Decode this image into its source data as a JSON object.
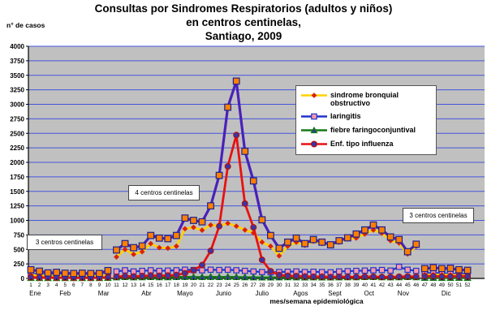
{
  "title_line1": "Consultas por Sindromes Respiratorios (adultos y niños)",
  "title_line2": "en centros centinelas,",
  "title_line3": "Santiago, 2009",
  "y_axis_unit_label": "n° de casos",
  "annotations": {
    "left": "3 centros centinelas",
    "middle": "4 centros centinelas",
    "right": "3 centros centinelas"
  },
  "chart_data": {
    "type": "line",
    "title": "Consultas por Sindromes Respiratorios (adultos y niños) en centros centinelas, Santiago, 2009",
    "xlabel": "mes/semana epidemiológica",
    "ylabel": "n° de casos",
    "ylim": [
      0,
      4000
    ],
    "y_tick_step": 250,
    "grid": "horizontal",
    "plot_bg_color": "#c0c0c0",
    "gridline_color": "#4455dd",
    "legend_position": "upper-right-inside",
    "x": [
      1,
      2,
      3,
      4,
      5,
      6,
      7,
      8,
      9,
      10,
      11,
      12,
      13,
      14,
      15,
      16,
      17,
      18,
      19,
      20,
      21,
      22,
      23,
      24,
      25,
      26,
      27,
      28,
      29,
      30,
      31,
      32,
      33,
      34,
      35,
      36,
      37,
      38,
      39,
      40,
      41,
      42,
      43,
      44,
      45,
      46,
      47,
      48,
      49,
      50,
      51,
      52
    ],
    "segments": [
      [
        1,
        10
      ],
      [
        11,
        46
      ],
      [
        47,
        52
      ]
    ],
    "months": [
      {
        "label": "Ene",
        "week": 1.5
      },
      {
        "label": "Feb",
        "week": 5
      },
      {
        "label": "Mar",
        "week": 9.5
      },
      {
        "label": "Abr",
        "week": 14.5
      },
      {
        "label": "Mayo",
        "week": 19
      },
      {
        "label": "Junio",
        "week": 23.5
      },
      {
        "label": "Julio",
        "week": 28
      },
      {
        "label": "Agos",
        "week": 32.5
      },
      {
        "label": "Sept",
        "week": 36.5
      },
      {
        "label": "Oct",
        "week": 40.5
      },
      {
        "label": "Nov",
        "week": 44.5
      },
      {
        "label": "Dic",
        "week": 49.5
      }
    ],
    "draw_order": [
      2,
      1,
      0,
      3,
      4
    ],
    "series": [
      {
        "name": "sindrome bronquial obstructivo",
        "show_in_legend": true,
        "line_color": "#ffd200",
        "line_width": 2.8,
        "marker": "diamond",
        "marker_color": "#dd2200",
        "marker_edge": "none",
        "marker_size": 3.4,
        "values": [
          60,
          50,
          45,
          50,
          45,
          40,
          45,
          40,
          45,
          60,
          370,
          500,
          415,
          460,
          600,
          530,
          520,
          555,
          855,
          880,
          830,
          920,
          905,
          950,
          900,
          835,
          785,
          625,
          555,
          390,
          555,
          625,
          570,
          640,
          600,
          570,
          625,
          680,
          695,
          765,
          835,
          780,
          650,
          610,
          420,
          555,
          60,
          65,
          60,
          60,
          55,
          50
        ]
      },
      {
        "name": "laringitis",
        "show_in_legend": true,
        "line_color": "#2233cc",
        "line_width": 2.2,
        "marker": "square",
        "marker_color": "#ff99aa",
        "marker_edge": "#2233cc",
        "marker_size": 3.2,
        "values": [
          80,
          70,
          60,
          65,
          55,
          55,
          60,
          55,
          55,
          70,
          120,
          140,
          120,
          130,
          140,
          130,
          135,
          140,
          150,
          145,
          140,
          150,
          145,
          150,
          140,
          130,
          120,
          110,
          105,
          110,
          115,
          120,
          110,
          115,
          110,
          105,
          120,
          125,
          130,
          135,
          140,
          145,
          135,
          200,
          150,
          130,
          90,
          95,
          90,
          85,
          80,
          75
        ]
      },
      {
        "name": "fiebre faringoconjuntival",
        "show_in_legend": true,
        "line_color": "#157a15",
        "line_width": 2.2,
        "marker": "triangle",
        "marker_color": "#2d3f99",
        "marker_edge": "#157a15",
        "marker_size": 3.8,
        "values": [
          10,
          8,
          8,
          8,
          8,
          8,
          8,
          8,
          8,
          10,
          20,
          25,
          20,
          22,
          25,
          22,
          22,
          25,
          28,
          25,
          25,
          28,
          25,
          28,
          25,
          22,
          20,
          18,
          18,
          20,
          22,
          20,
          18,
          20,
          18,
          18,
          20,
          22,
          22,
          25,
          25,
          22,
          20,
          22,
          25,
          22,
          12,
          12,
          10,
          10,
          12,
          10
        ]
      },
      {
        "name": "Enf. tipo influenza",
        "show_in_legend": true,
        "line_color": "#e81111",
        "line_width": 2.8,
        "marker": "circle",
        "marker_color": "#3a35a8",
        "marker_edge": "#b01010",
        "marker_size": 3.4,
        "values": [
          20,
          15,
          15,
          12,
          12,
          10,
          12,
          10,
          12,
          20,
          30,
          40,
          35,
          40,
          50,
          45,
          50,
          60,
          90,
          140,
          230,
          475,
          900,
          1930,
          2470,
          1290,
          880,
          320,
          125,
          60,
          45,
          40,
          35,
          30,
          30,
          25,
          30,
          25,
          25,
          30,
          30,
          25,
          25,
          30,
          35,
          30,
          40,
          40,
          35,
          35,
          40,
          35
        ]
      },
      {
        "name": "",
        "show_in_legend": false,
        "line_color": "#4a21b8",
        "line_width": 3.2,
        "marker": "square",
        "marker_color": "#ff7f00",
        "marker_edge": "#1f1f8f",
        "marker_size": 3.8,
        "values": [
          150,
          125,
          95,
          105,
          90,
          85,
          90,
          85,
          85,
          135,
          490,
          600,
          530,
          560,
          740,
          695,
          685,
          740,
          1040,
          1000,
          975,
          1250,
          1775,
          2950,
          3400,
          2190,
          1680,
          1010,
          740,
          520,
          625,
          695,
          600,
          670,
          625,
          580,
          650,
          700,
          765,
          835,
          920,
          835,
          715,
          670,
          460,
          590,
          170,
          185,
          170,
          175,
          150,
          140
        ]
      }
    ]
  }
}
